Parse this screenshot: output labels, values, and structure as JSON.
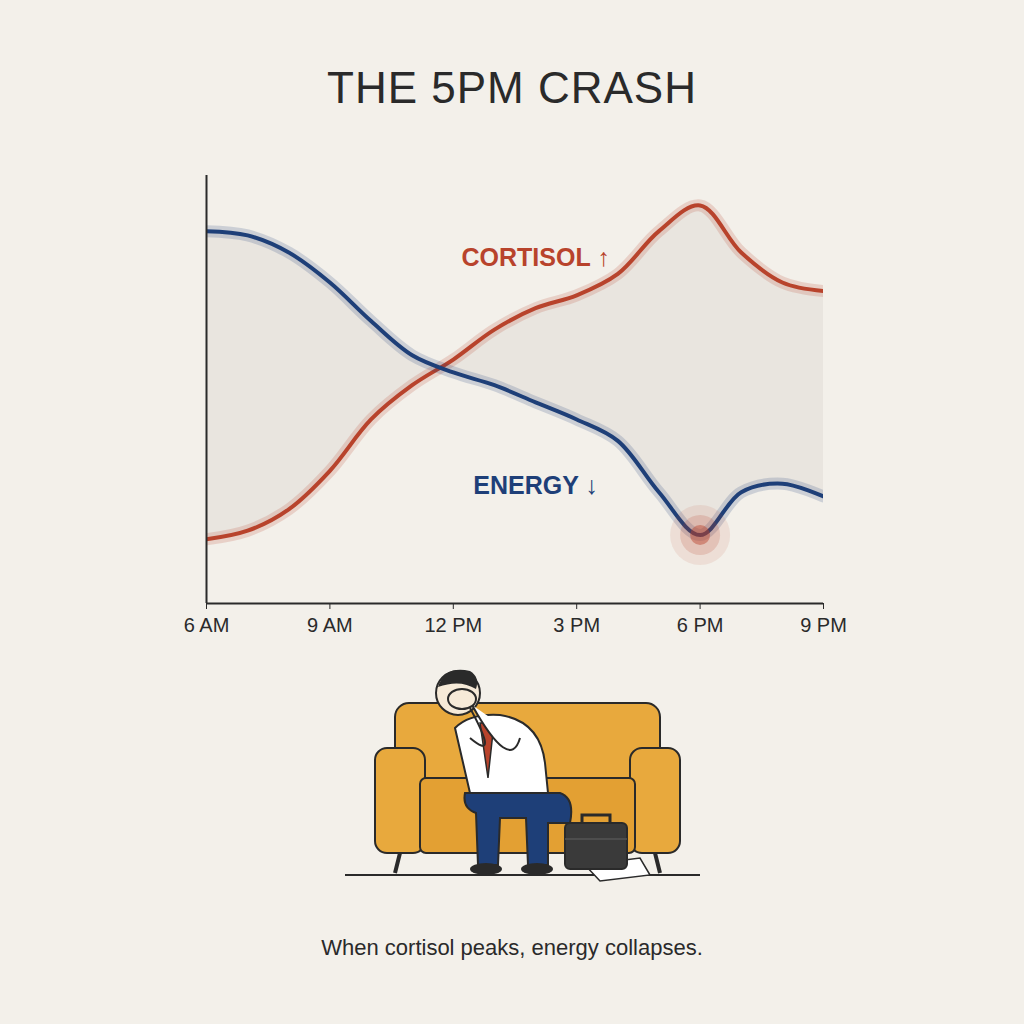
{
  "chart_data": {
    "type": "line",
    "title": "THE 5PM CRASH",
    "caption": "When cortisol peaks, energy collapses.",
    "x": [
      6,
      7,
      8,
      9,
      10,
      11,
      12,
      13,
      14,
      15,
      16,
      17,
      18,
      19,
      20,
      21
    ],
    "series": [
      {
        "name": "CORTISOL ↑",
        "color": "#b8432c",
        "values": [
          15,
          17,
          22,
          31,
          43,
          51,
          57,
          64,
          69,
          72,
          77,
          87,
          93,
          82,
          75,
          73
        ]
      },
      {
        "name": "ENERGY ↓",
        "color": "#1e3f78",
        "values": [
          87,
          86,
          82,
          75,
          66,
          58,
          54,
          51,
          47,
          43,
          38,
          26,
          16,
          26,
          28,
          25
        ]
      }
    ],
    "xlim": [
      6,
      21
    ],
    "xticks": [
      {
        "value": 6,
        "label": "6 AM"
      },
      {
        "value": 9,
        "label": "9 AM"
      },
      {
        "value": 12,
        "label": "12 PM"
      },
      {
        "value": 15,
        "label": "3 PM"
      },
      {
        "value": 18,
        "label": "6 PM"
      },
      {
        "value": 21,
        "label": "9 PM"
      }
    ],
    "ylim": [
      0,
      100
    ],
    "yticks": [],
    "grid": false,
    "tick_labels": "x"
  }
}
